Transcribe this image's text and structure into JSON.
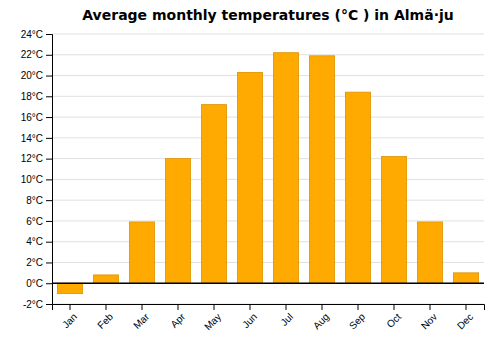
{
  "chart_data": {
    "type": "bar",
    "title": "Average monthly temperatures (°C ) in Almä·ju",
    "categories": [
      "Jan",
      "Feb",
      "Mar",
      "Apr",
      "May",
      "Jun",
      "Jul",
      "Aug",
      "Sep",
      "Oct",
      "Nov",
      "Dec"
    ],
    "values": [
      -1.0,
      0.8,
      5.9,
      12.0,
      17.2,
      20.3,
      22.2,
      21.9,
      18.4,
      12.2,
      5.9,
      1.0
    ],
    "color": "#FFAA00",
    "ylim": [
      -2,
      24
    ],
    "yticks": [
      {
        "value": -2,
        "label": "-2°C"
      },
      {
        "value": 0,
        "label": "0°C"
      },
      {
        "value": 2,
        "label": "2°C"
      },
      {
        "value": 4,
        "label": "4°C"
      },
      {
        "value": 6,
        "label": "6°C"
      },
      {
        "value": 8,
        "label": "8°C"
      },
      {
        "value": 10,
        "label": "10°C"
      },
      {
        "value": 12,
        "label": "12°C"
      },
      {
        "value": 14,
        "label": "14°C"
      },
      {
        "value": 16,
        "label": "16°C"
      },
      {
        "value": 18,
        "label": "18°C"
      },
      {
        "value": 20,
        "label": "20°C"
      },
      {
        "value": 22,
        "label": "22°C"
      },
      {
        "value": 24,
        "label": "24°C"
      }
    ],
    "grid": true
  }
}
